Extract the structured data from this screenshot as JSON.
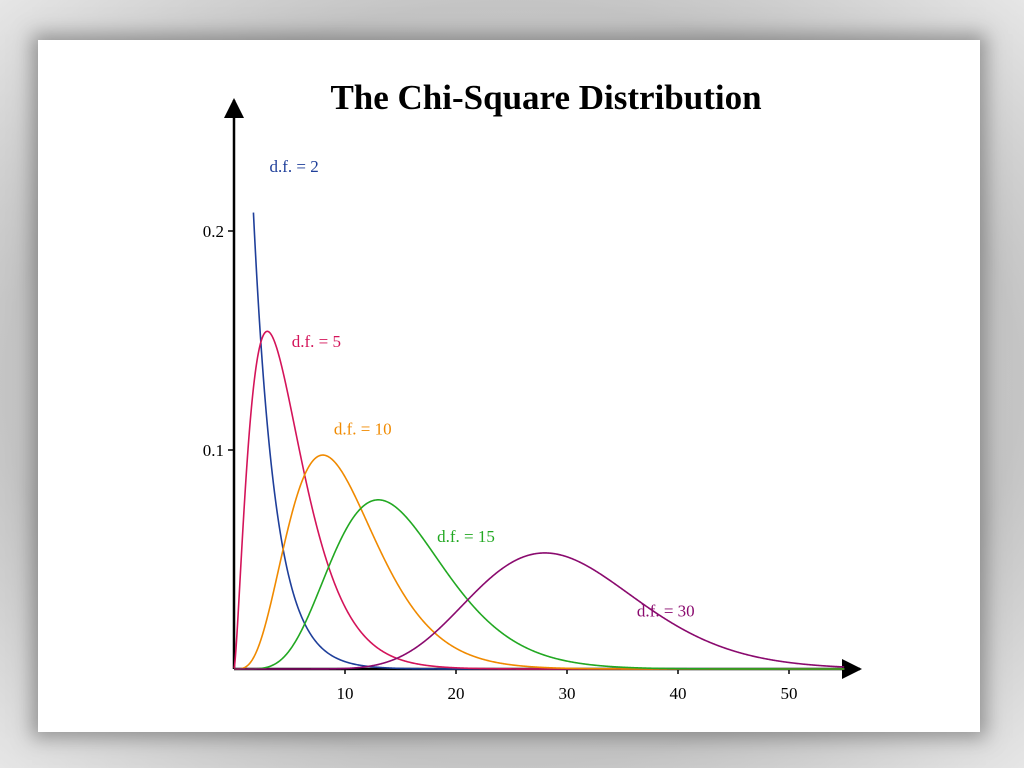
{
  "chart_data": {
    "type": "line",
    "title": "The Chi-Square Distribution",
    "xlabel": "",
    "ylabel": "",
    "xlim": [
      0,
      55
    ],
    "ylim": [
      0,
      0.25
    ],
    "x_ticks": [
      10,
      20,
      30,
      40,
      50
    ],
    "y_ticks": [
      0.1,
      0.2
    ],
    "x_tick_labels": [
      "10",
      "20",
      "30",
      "40",
      "50"
    ],
    "y_tick_labels": [
      "0.1",
      "0.2"
    ],
    "grid": false,
    "series": [
      {
        "df": 2,
        "name": "d.f. = 2",
        "color": "#1f3f9a",
        "label_at": [
          3.2,
          0.227
        ]
      },
      {
        "df": 5,
        "name": "d.f. = 5",
        "color": "#d4145a",
        "label_at": [
          5.2,
          0.147
        ]
      },
      {
        "df": 10,
        "name": "d.f. = 10",
        "color": "#f08a00",
        "label_at": [
          9.0,
          0.107
        ]
      },
      {
        "df": 15,
        "name": "d.f. = 15",
        "color": "#22a822",
        "label_at": [
          18.3,
          0.058
        ]
      },
      {
        "df": 30,
        "name": "d.f. = 30",
        "color": "#8a0a6e",
        "label_at": [
          36.3,
          0.024
        ]
      }
    ]
  }
}
